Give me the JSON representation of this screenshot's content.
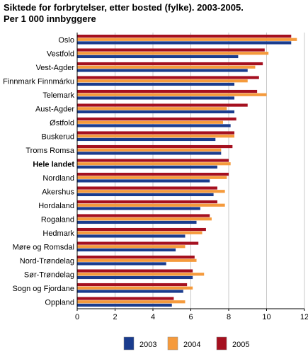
{
  "title_line1": "Siktede for forbrytelser, etter bosted (fylke). 2003-2005.",
  "title_line2": "Per 1 000 innbyggere",
  "chart_data": {
    "type": "bar",
    "orientation": "horizontal",
    "categories": [
      "Oslo",
      "Vestfold",
      "Vest-Agder",
      "Finnmark Finnmárku",
      "Telemark",
      "Aust-Agder",
      "Østfold",
      "Buskerud",
      "Troms Romsa",
      "Hele landet",
      "Nordland",
      "Akershus",
      "Hordaland",
      "Rogaland",
      "Hedmark",
      "Møre og Romsdal",
      "Nord-Trøndelag",
      "Sør-Trøndelag",
      "Sogn og Fjordane",
      "Oppland"
    ],
    "bold_categories": [
      "Hele landet"
    ],
    "series": [
      {
        "name": "2003",
        "color": "#1a3c8e",
        "values": [
          11.3,
          8.5,
          9.0,
          8.3,
          8.3,
          8.3,
          8.1,
          7.3,
          7.6,
          7.4,
          7.0,
          7.2,
          6.5,
          6.3,
          5.7,
          5.2,
          4.7,
          6.1,
          5.6,
          5.0
        ]
      },
      {
        "name": "2004",
        "color": "#f59a3c",
        "values": [
          11.6,
          10.1,
          9.4,
          9.0,
          10.0,
          7.9,
          7.7,
          8.3,
          7.6,
          8.1,
          7.9,
          7.8,
          7.8,
          7.1,
          6.6,
          5.7,
          6.3,
          6.7,
          6.1,
          5.7
        ]
      },
      {
        "name": "2005",
        "color": "#a5101f",
        "values": [
          11.3,
          9.9,
          9.8,
          9.6,
          9.5,
          9.0,
          8.4,
          8.3,
          8.2,
          8.0,
          8.0,
          7.4,
          7.4,
          7.0,
          6.8,
          6.4,
          6.2,
          6.1,
          5.8,
          5.1
        ]
      }
    ],
    "xlim": [
      0,
      12
    ],
    "xticks": [
      0,
      2,
      4,
      6,
      8,
      10,
      12
    ],
    "grid": "vertical",
    "legend": "bottom-right"
  }
}
